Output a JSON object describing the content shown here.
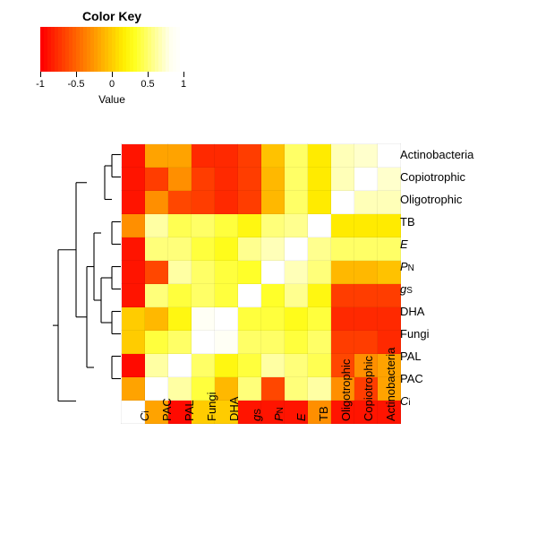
{
  "legend": {
    "title": "Color Key",
    "value_label": "Value",
    "ticks": [
      -1,
      -0.5,
      0,
      0.5,
      1
    ]
  },
  "color_ramp": [
    "#ff0000",
    "#ff2200",
    "#ff4400",
    "#ff6600",
    "#ff8800",
    "#ffaa00",
    "#ffcc00",
    "#ffee00",
    "#ffff22",
    "#ffff66",
    "#ffffaa",
    "#ffffee",
    "#ffffff"
  ],
  "heatmap": {
    "type": "heatmap",
    "row_labels": [
      {
        "text": "Actinobacteria",
        "style": ""
      },
      {
        "text": "Copiotrophic",
        "style": ""
      },
      {
        "text": "Oligotrophic",
        "style": ""
      },
      {
        "text": "TB",
        "style": ""
      },
      {
        "text": "E",
        "style": "ital"
      },
      {
        "html": "<span class=\"ital\">P</span><span class=\"sub\">N</span>",
        "style": ""
      },
      {
        "html": "<span class=\"ital\">g</span><span class=\"sub\">S</span>",
        "style": ""
      },
      {
        "text": "DHA",
        "style": ""
      },
      {
        "text": "Fungi",
        "style": ""
      },
      {
        "text": "PAL",
        "style": ""
      },
      {
        "text": "PAC",
        "style": ""
      },
      {
        "html": "<span class=\"ital\">C</span><span class=\"sub\">i</span>",
        "style": ""
      }
    ],
    "col_labels": [
      {
        "html": "<span class=\"ital\">C</span><span class=\"sub\">i</span>",
        "style": ""
      },
      {
        "text": "PAC",
        "style": ""
      },
      {
        "text": "PAL",
        "style": ""
      },
      {
        "text": "Fungi",
        "style": ""
      },
      {
        "text": "DHA",
        "style": ""
      },
      {
        "html": "<span class=\"ital\">g</span><span class=\"sub\">S</span>",
        "style": ""
      },
      {
        "html": "<span class=\"ital\">P</span><span class=\"sub\">N</span>",
        "style": ""
      },
      {
        "text": "E",
        "style": "ital"
      },
      {
        "text": "TB",
        "style": ""
      },
      {
        "text": "Oligotrophic",
        "style": ""
      },
      {
        "text": "Copiotrophic",
        "style": ""
      },
      {
        "text": "Actinobacteria",
        "style": ""
      }
    ],
    "values": [
      [
        -0.9,
        -0.2,
        -0.2,
        -0.8,
        -0.8,
        -0.7,
        -0.05,
        0.5,
        0.15,
        0.7,
        0.75,
        1.0
      ],
      [
        -0.9,
        -0.7,
        -0.3,
        -0.7,
        -0.8,
        -0.7,
        -0.1,
        0.5,
        0.15,
        0.7,
        1.0,
        0.75
      ],
      [
        -0.9,
        -0.3,
        -0.65,
        -0.7,
        -0.8,
        -0.7,
        -0.1,
        0.5,
        0.15,
        1.0,
        0.7,
        0.7
      ],
      [
        -0.3,
        0.65,
        0.45,
        0.5,
        0.4,
        0.25,
        0.55,
        0.6,
        1.0,
        0.15,
        0.15,
        0.15
      ],
      [
        -0.9,
        0.55,
        0.55,
        0.4,
        0.3,
        0.6,
        0.7,
        1.0,
        0.6,
        0.5,
        0.5,
        0.5
      ],
      [
        -0.9,
        -0.65,
        0.65,
        0.5,
        0.4,
        0.35,
        1.0,
        0.7,
        0.55,
        -0.1,
        -0.1,
        -0.05
      ],
      [
        -0.9,
        0.55,
        0.4,
        0.5,
        0.4,
        1.0,
        0.35,
        0.6,
        0.25,
        -0.7,
        -0.7,
        -0.7
      ],
      [
        0.0,
        -0.1,
        0.25,
        0.9,
        1.0,
        0.4,
        0.4,
        0.3,
        0.4,
        -0.8,
        -0.8,
        -0.8
      ],
      [
        0.0,
        0.4,
        0.5,
        1.0,
        0.9,
        0.5,
        0.5,
        0.4,
        0.5,
        -0.7,
        -0.7,
        -0.8
      ],
      [
        -0.95,
        0.65,
        1.0,
        0.5,
        0.25,
        0.4,
        0.65,
        0.55,
        0.45,
        -0.65,
        -0.3,
        -0.2
      ],
      [
        -0.2,
        1.0,
        0.65,
        0.4,
        -0.1,
        0.55,
        -0.65,
        0.55,
        0.65,
        -0.3,
        -0.7,
        -0.2
      ],
      [
        1.0,
        -0.2,
        -0.95,
        0.0,
        0.0,
        -0.9,
        -0.9,
        -0.9,
        -0.3,
        -0.9,
        -0.9,
        -0.9
      ]
    ],
    "cell_size": 25,
    "value_min": -1,
    "value_max": 1,
    "background": "#ffffff",
    "font_size_labels": 13
  },
  "dendrogram": {
    "stroke": "#000000",
    "stroke_width": 1.1,
    "leaf_y": [
      12.5,
      37.5,
      62.5,
      87.5,
      112.5,
      137.5,
      162.5,
      187.5,
      212.5,
      237.5,
      262.5,
      287.5
    ]
  }
}
